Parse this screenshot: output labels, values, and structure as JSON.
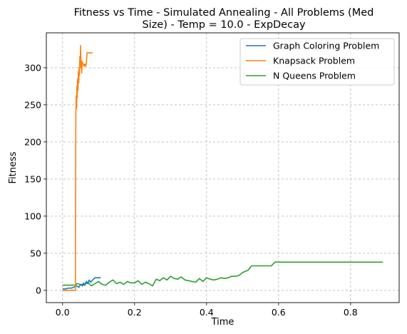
{
  "chart_data": {
    "type": "line",
    "title": "Fitness vs Time - Simulated Annealing - All Problems (Med Size) - Temp = 10.0 - ExpDecay",
    "title_lines": [
      "Fitness vs Time - Simulated Annealing - All Problems (Med",
      "Size) - Temp = 10.0 - ExpDecay"
    ],
    "xlabel": "Time",
    "ylabel": "Fitness",
    "xlim": [
      -0.045,
      0.935
    ],
    "ylim": [
      -16.5,
      347
    ],
    "xticks": [
      0.0,
      0.2,
      0.4,
      0.6,
      0.8
    ],
    "xtick_labels": [
      "0.0",
      "0.2",
      "0.4",
      "0.6",
      "0.8"
    ],
    "yticks": [
      0,
      50,
      100,
      150,
      200,
      250,
      300
    ],
    "ytick_labels": [
      "0",
      "50",
      "100",
      "150",
      "200",
      "250",
      "300"
    ],
    "grid": true,
    "legend_position": "top-right",
    "series": [
      {
        "name": "Graph Coloring Problem",
        "color": "#1f77b4",
        "x": [
          0.0,
          0.005,
          0.01,
          0.015,
          0.02,
          0.025,
          0.03,
          0.035,
          0.04,
          0.045,
          0.05,
          0.055,
          0.058,
          0.062,
          0.066,
          0.07,
          0.074,
          0.078,
          0.082,
          0.086,
          0.09,
          0.094,
          0.098,
          0.102,
          0.106
        ],
        "y": [
          2,
          2,
          2,
          3,
          3,
          3,
          4,
          5,
          6,
          4,
          8,
          6,
          10,
          7,
          12,
          9,
          14,
          11,
          13,
          15,
          17,
          17,
          17,
          17,
          17
        ]
      },
      {
        "name": "Knapsack Problem",
        "color": "#ff7f0e",
        "x": [
          0.0,
          0.036,
          0.036,
          0.037,
          0.038,
          0.039,
          0.04,
          0.041,
          0.042,
          0.043,
          0.044,
          0.045,
          0.046,
          0.047,
          0.048,
          0.049,
          0.05,
          0.051,
          0.052,
          0.053,
          0.054,
          0.055,
          0.056,
          0.058,
          0.06,
          0.062,
          0.064,
          0.066,
          0.068,
          0.07,
          0.072,
          0.074,
          0.076,
          0.078,
          0.08,
          0.083
        ],
        "y": [
          0,
          0,
          70,
          235,
          262,
          245,
          275,
          260,
          285,
          270,
          295,
          280,
          300,
          290,
          315,
          300,
          330,
          305,
          310,
          293,
          300,
          308,
          305,
          305,
          302,
          305,
          302,
          305,
          320,
          320,
          320,
          320,
          320,
          320,
          320,
          320
        ]
      },
      {
        "name": "N Queens Problem",
        "color": "#2ca02c",
        "x": [
          0.0,
          0.035,
          0.04,
          0.05,
          0.06,
          0.07,
          0.08,
          0.09,
          0.1,
          0.11,
          0.12,
          0.13,
          0.14,
          0.15,
          0.16,
          0.17,
          0.18,
          0.19,
          0.2,
          0.21,
          0.22,
          0.23,
          0.24,
          0.25,
          0.26,
          0.27,
          0.28,
          0.29,
          0.3,
          0.31,
          0.32,
          0.33,
          0.34,
          0.35,
          0.36,
          0.37,
          0.38,
          0.39,
          0.4,
          0.41,
          0.42,
          0.43,
          0.44,
          0.45,
          0.46,
          0.47,
          0.48,
          0.49,
          0.5,
          0.51,
          0.515,
          0.52,
          0.525,
          0.53,
          0.54,
          0.55,
          0.56,
          0.57,
          0.58,
          0.59,
          0.6,
          0.7,
          0.8,
          0.89
        ],
        "y": [
          7,
          7,
          9,
          8,
          7,
          11,
          6,
          9,
          12,
          8,
          7,
          11,
          14,
          9,
          11,
          8,
          12,
          10,
          10,
          13,
          8,
          11,
          9,
          6,
          15,
          13,
          17,
          14,
          19,
          16,
          15,
          18,
          14,
          13,
          12,
          11,
          16,
          12,
          17,
          15,
          14,
          15,
          17,
          16,
          17,
          19,
          19,
          20,
          24,
          26,
          27,
          30,
          33,
          33,
          33,
          33,
          33,
          33,
          33,
          38,
          38,
          38,
          38,
          38
        ]
      }
    ]
  }
}
